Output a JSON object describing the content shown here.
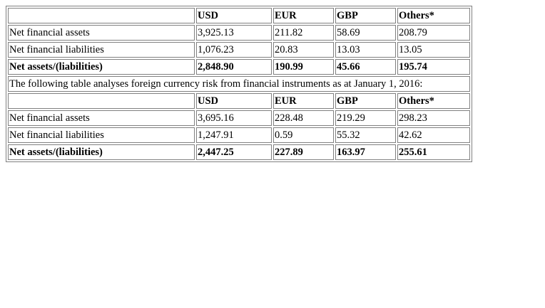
{
  "table": {
    "section1": {
      "header": {
        "blank": "",
        "usd": "USD",
        "eur": "EUR",
        "gbp": "GBP",
        "others": "Others*"
      },
      "rows": [
        {
          "label": "Net financial assets",
          "usd": "3,925.13",
          "eur": "211.82",
          "gbp": "58.69",
          "others": "208.79"
        },
        {
          "label": "Net financial liabilities",
          "usd": "1,076.23",
          "eur": "20.83",
          "gbp": "13.03",
          "others": "13.05"
        }
      ],
      "total": {
        "label": "Net assets/(liabilities)",
        "usd": "2,848.90",
        "eur": "190.99",
        "gbp": "45.66",
        "others": "195.74"
      }
    },
    "caption": "The following table analyses foreign currency risk from financial instruments as at January 1, 2016:",
    "section2": {
      "header": {
        "blank": "",
        "usd": "USD",
        "eur": "EUR",
        "gbp": "GBP",
        "others": "Others*"
      },
      "rows": [
        {
          "label": "Net financial assets",
          "usd": "3,695.16",
          "eur": "228.48",
          "gbp": "219.29",
          "others": "298.23"
        },
        {
          "label": "Net financial liabilities",
          "usd": "1,247.91",
          "eur": "0.59",
          "gbp": "55.32",
          "others": "42.62"
        }
      ],
      "total": {
        "label": "Net assets/(liabilities)",
        "usd": "2,447.25",
        "eur": "227.89",
        "gbp": "163.97",
        "others": "255.61"
      }
    }
  }
}
